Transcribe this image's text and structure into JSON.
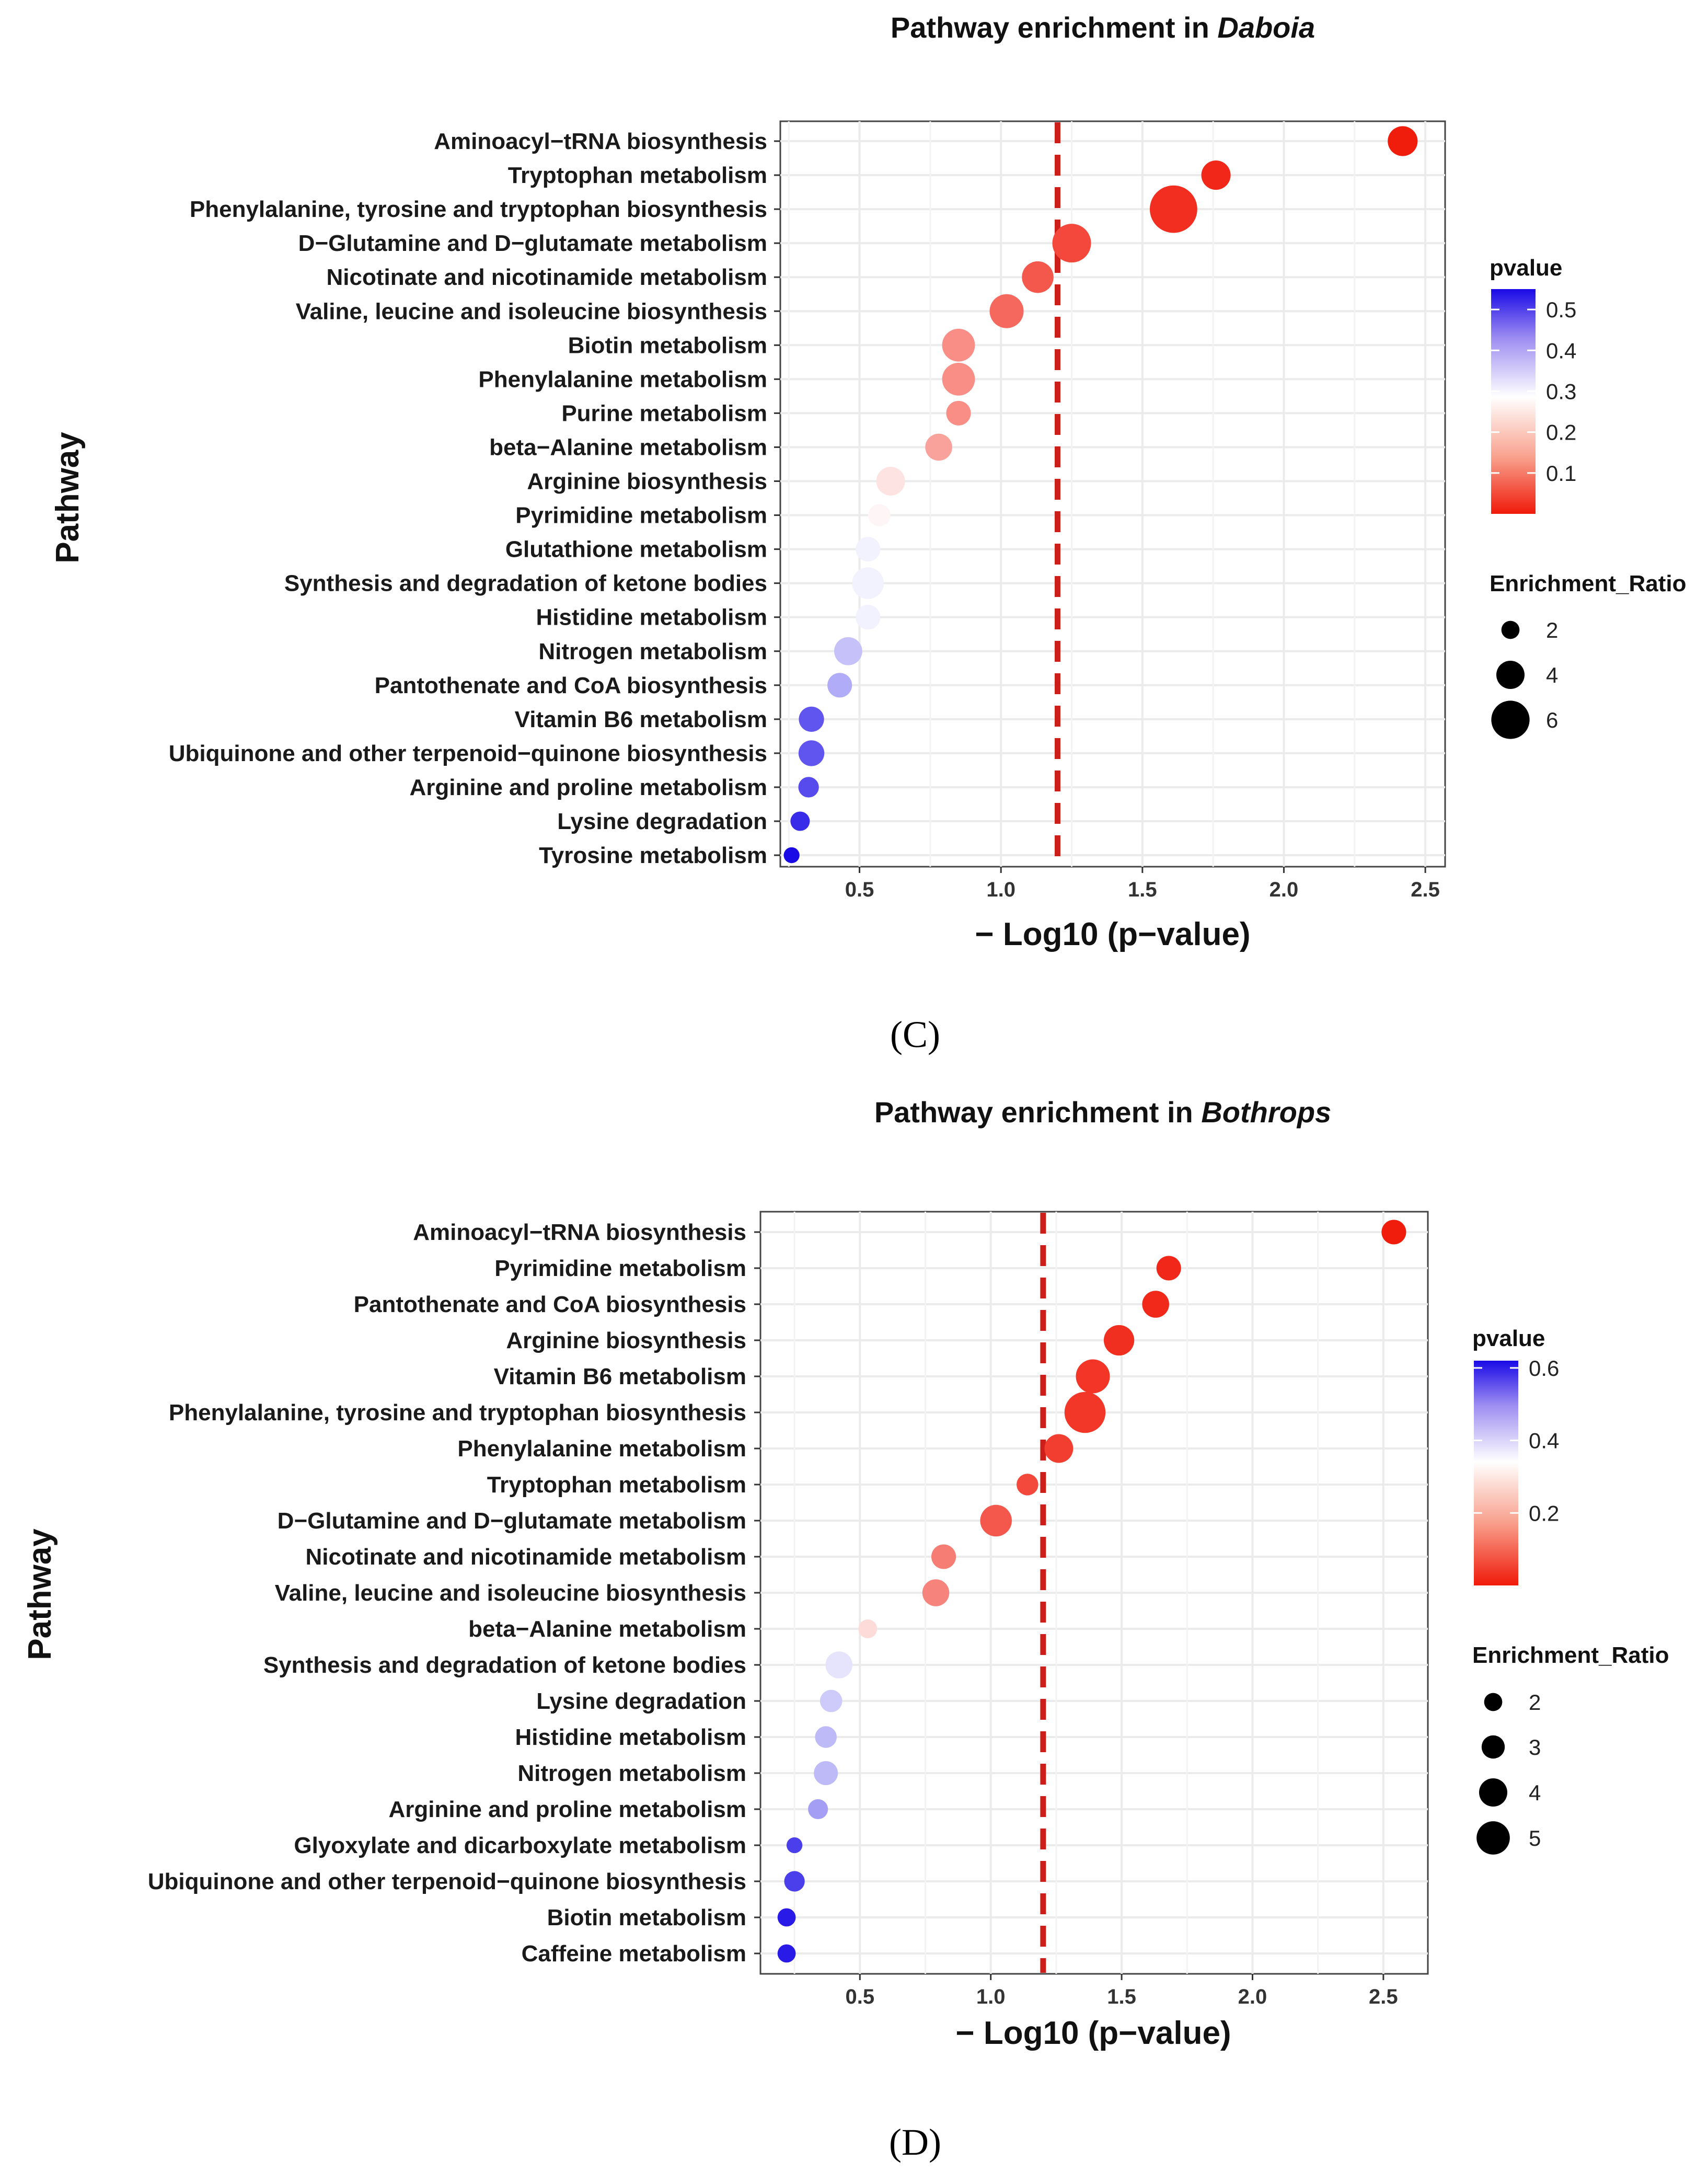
{
  "colors": {
    "low": "#f01a0a",
    "mid": "#ffffff",
    "high": "#1a0ae6",
    "threshold_line": "#cc1f1a",
    "grid": "#ebebeb",
    "panel_border": "#444444"
  },
  "chart_data": [
    {
      "type": "scatter",
      "panel_label": "(C)",
      "title_prefix": "Pathway enrichment in ",
      "title_italic": "Daboia",
      "xlabel": "− Log10 (p−value)",
      "ylabel": "Pathway",
      "xlim": [
        0.22,
        2.57
      ],
      "xticks": [
        "0.5",
        "1.0",
        "1.5",
        "2.0",
        "2.5"
      ],
      "xtick_values": [
        0.5,
        1.0,
        1.5,
        2.0,
        2.5
      ],
      "threshold_x": 1.2,
      "color_legend": {
        "title": "pvalue",
        "range": [
          0.0,
          0.55
        ],
        "ticks": [
          "0.5",
          "0.4",
          "0.3",
          "0.2",
          "0.1"
        ],
        "tick_values": [
          0.5,
          0.4,
          0.3,
          0.2,
          0.1
        ]
      },
      "size_legend": {
        "title": "Enrichment_Ratio",
        "labels": [
          "2",
          "4",
          "6"
        ],
        "values": [
          2,
          4,
          6
        ]
      },
      "points": [
        {
          "pathway": "Aminoacyl−tRNA biosynthesis",
          "neg_log10_p": 2.42,
          "enrichment_ratio": 3.5
        },
        {
          "pathway": "Tryptophan metabolism",
          "neg_log10_p": 1.76,
          "enrichment_ratio": 3.4
        },
        {
          "pathway": "Phenylalanine, tyrosine and tryptophan biosynthesis",
          "neg_log10_p": 1.61,
          "enrichment_ratio": 6.5
        },
        {
          "pathway": "D−Glutamine and D−glutamate metabolism",
          "neg_log10_p": 1.25,
          "enrichment_ratio": 5.0
        },
        {
          "pathway": "Nicotinate and nicotinamide metabolism",
          "neg_log10_p": 1.13,
          "enrichment_ratio": 3.8
        },
        {
          "pathway": "Valine, leucine and isoleucine biosynthesis",
          "neg_log10_p": 1.02,
          "enrichment_ratio": 4.2
        },
        {
          "pathway": "Biotin metabolism",
          "neg_log10_p": 0.85,
          "enrichment_ratio": 4.0
        },
        {
          "pathway": "Phenylalanine metabolism",
          "neg_log10_p": 0.85,
          "enrichment_ratio": 4.0
        },
        {
          "pathway": "Purine metabolism",
          "neg_log10_p": 0.85,
          "enrichment_ratio": 2.6
        },
        {
          "pathway": "beta−Alanine metabolism",
          "neg_log10_p": 0.78,
          "enrichment_ratio": 3.0
        },
        {
          "pathway": "Arginine biosynthesis",
          "neg_log10_p": 0.61,
          "enrichment_ratio": 3.3
        },
        {
          "pathway": "Pyrimidine metabolism",
          "neg_log10_p": 0.57,
          "enrichment_ratio": 2.2
        },
        {
          "pathway": "Glutathione metabolism",
          "neg_log10_p": 0.53,
          "enrichment_ratio": 2.6
        },
        {
          "pathway": "Synthesis and degradation of ketone bodies",
          "neg_log10_p": 0.53,
          "enrichment_ratio": 3.8
        },
        {
          "pathway": "Histidine metabolism",
          "neg_log10_p": 0.53,
          "enrichment_ratio": 2.6
        },
        {
          "pathway": "Nitrogen metabolism",
          "neg_log10_p": 0.46,
          "enrichment_ratio": 3.2
        },
        {
          "pathway": "Pantothenate and CoA biosynthesis",
          "neg_log10_p": 0.43,
          "enrichment_ratio": 2.6
        },
        {
          "pathway": "Vitamin B6 metabolism",
          "neg_log10_p": 0.33,
          "enrichment_ratio": 2.7
        },
        {
          "pathway": "Ubiquinone and other terpenoid−quinone biosynthesis",
          "neg_log10_p": 0.33,
          "enrichment_ratio": 2.8
        },
        {
          "pathway": "Arginine and proline metabolism",
          "neg_log10_p": 0.32,
          "enrichment_ratio": 1.9
        },
        {
          "pathway": "Lysine degradation",
          "neg_log10_p": 0.29,
          "enrichment_ratio": 1.7
        },
        {
          "pathway": "Tyrosine metabolism",
          "neg_log10_p": 0.26,
          "enrichment_ratio": 1.1
        }
      ]
    },
    {
      "type": "scatter",
      "panel_label": "(D)",
      "title_prefix": "Pathway enrichment in ",
      "title_italic": "Bothrops",
      "xlabel": "− Log10 (p−value)",
      "ylabel": "Pathway",
      "xlim": [
        0.12,
        2.67
      ],
      "xticks": [
        "0.5",
        "1.0",
        "1.5",
        "2.0",
        "2.5"
      ],
      "xtick_values": [
        0.5,
        1.0,
        1.5,
        2.0,
        2.5
      ],
      "threshold_x": 1.2,
      "color_legend": {
        "title": "pvalue",
        "range": [
          0.0,
          0.62
        ],
        "ticks": [
          "0.6",
          "0.4",
          "0.2"
        ],
        "tick_values": [
          0.6,
          0.4,
          0.2
        ]
      },
      "size_legend": {
        "title": "Enrichment_Ratio",
        "labels": [
          "2",
          "3",
          "4",
          "5"
        ],
        "values": [
          2,
          3,
          4,
          5
        ]
      },
      "points": [
        {
          "pathway": "Aminoacyl−tRNA biosynthesis",
          "neg_log10_p": 2.54,
          "enrichment_ratio": 2.6
        },
        {
          "pathway": "Pyrimidine metabolism",
          "neg_log10_p": 1.68,
          "enrichment_ratio": 2.6
        },
        {
          "pathway": "Pantothenate and CoA biosynthesis",
          "neg_log10_p": 1.63,
          "enrichment_ratio": 3.0
        },
        {
          "pathway": "Arginine biosynthesis",
          "neg_log10_p": 1.49,
          "enrichment_ratio": 3.6
        },
        {
          "pathway": "Vitamin B6 metabolism",
          "neg_log10_p": 1.39,
          "enrichment_ratio": 4.2
        },
        {
          "pathway": "Phenylalanine, tyrosine and tryptophan biosynthesis",
          "neg_log10_p": 1.36,
          "enrichment_ratio": 5.4
        },
        {
          "pathway": "Phenylalanine metabolism",
          "neg_log10_p": 1.26,
          "enrichment_ratio": 3.3
        },
        {
          "pathway": "Tryptophan metabolism",
          "neg_log10_p": 1.14,
          "enrichment_ratio": 2.1
        },
        {
          "pathway": "D−Glutamine and D−glutamate metabolism",
          "neg_log10_p": 1.02,
          "enrichment_ratio": 3.8
        },
        {
          "pathway": "Nicotinate and nicotinamide metabolism",
          "neg_log10_p": 0.82,
          "enrichment_ratio": 2.6
        },
        {
          "pathway": "Valine, leucine and isoleucine biosynthesis",
          "neg_log10_p": 0.79,
          "enrichment_ratio": 3.0
        },
        {
          "pathway": "beta−Alanine metabolism",
          "neg_log10_p": 0.53,
          "enrichment_ratio": 1.6
        },
        {
          "pathway": "Synthesis and degradation of ketone bodies",
          "neg_log10_p": 0.42,
          "enrichment_ratio": 3.0
        },
        {
          "pathway": "Lysine degradation",
          "neg_log10_p": 0.39,
          "enrichment_ratio": 2.2
        },
        {
          "pathway": "Histidine metabolism",
          "neg_log10_p": 0.37,
          "enrichment_ratio": 2.1
        },
        {
          "pathway": "Nitrogen metabolism",
          "neg_log10_p": 0.37,
          "enrichment_ratio": 2.5
        },
        {
          "pathway": "Arginine and proline metabolism",
          "neg_log10_p": 0.34,
          "enrichment_ratio": 1.8
        },
        {
          "pathway": "Glyoxylate and dicarboxylate metabolism",
          "neg_log10_p": 0.25,
          "enrichment_ratio": 1.1
        },
        {
          "pathway": "Ubiquinone and other terpenoid−quinone biosynthesis",
          "neg_log10_p": 0.25,
          "enrichment_ratio": 1.9
        },
        {
          "pathway": "Biotin metabolism",
          "neg_log10_p": 0.22,
          "enrichment_ratio": 1.5
        },
        {
          "pathway": "Caffeine metabolism",
          "neg_log10_p": 0.22,
          "enrichment_ratio": 1.5
        }
      ]
    }
  ]
}
